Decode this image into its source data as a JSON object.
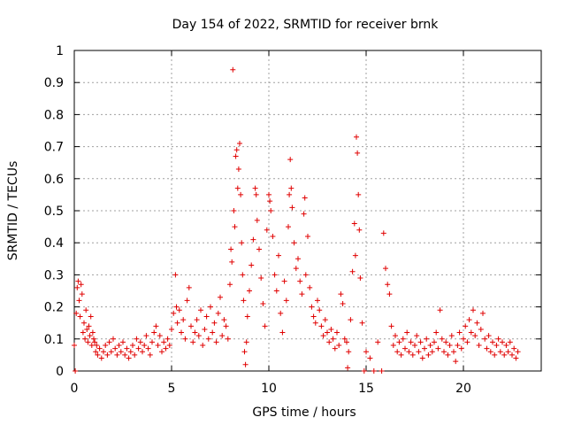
{
  "chart_data": {
    "type": "scatter",
    "title": "Day 154 of 2022, SRMTID for receiver brnk",
    "xlabel": "GPS time / hours",
    "ylabel": "SRMTID / TECUs",
    "xlim": [
      0,
      24
    ],
    "ylim": [
      0,
      1
    ],
    "grid": true,
    "marker": "+",
    "series_color": "#e00000",
    "x_ticks": [
      {
        "value": 0,
        "label": "0"
      },
      {
        "value": 5,
        "label": "5"
      },
      {
        "value": 10,
        "label": "10"
      },
      {
        "value": 15,
        "label": "15"
      },
      {
        "value": 20,
        "label": "20"
      }
    ],
    "y_ticks": [
      {
        "value": 0,
        "label": "0"
      },
      {
        "value": 0.1,
        "label": "0.1"
      },
      {
        "value": 0.2,
        "label": "0.2"
      },
      {
        "value": 0.3,
        "label": "0.3"
      },
      {
        "value": 0.4,
        "label": "0.4"
      },
      {
        "value": 0.5,
        "label": "0.5"
      },
      {
        "value": 0.6,
        "label": "0.6"
      },
      {
        "value": 0.7,
        "label": "0.7"
      },
      {
        "value": 0.8,
        "label": "0.8"
      },
      {
        "value": 0.9,
        "label": "0.9"
      },
      {
        "value": 1,
        "label": "1"
      }
    ],
    "series": [
      {
        "name": "SRMTID",
        "points": [
          [
            0.0,
            0.08
          ],
          [
            0.05,
            0.0
          ],
          [
            0.1,
            0.18
          ],
          [
            0.15,
            0.26
          ],
          [
            0.2,
            0.28
          ],
          [
            0.25,
            0.22
          ],
          [
            0.3,
            0.17
          ],
          [
            0.35,
            0.27
          ],
          [
            0.4,
            0.24
          ],
          [
            0.45,
            0.12
          ],
          [
            0.5,
            0.15
          ],
          [
            0.55,
            0.1
          ],
          [
            0.6,
            0.19
          ],
          [
            0.65,
            0.13
          ],
          [
            0.7,
            0.09
          ],
          [
            0.75,
            0.14
          ],
          [
            0.8,
            0.11
          ],
          [
            0.85,
            0.17
          ],
          [
            0.9,
            0.08
          ],
          [
            0.95,
            0.12
          ],
          [
            1.0,
            0.1
          ],
          [
            1.05,
            0.09
          ],
          [
            1.1,
            0.06
          ],
          [
            1.15,
            0.08
          ],
          [
            1.2,
            0.05
          ],
          [
            1.3,
            0.07
          ],
          [
            1.4,
            0.04
          ],
          [
            1.5,
            0.06
          ],
          [
            1.6,
            0.08
          ],
          [
            1.7,
            0.05
          ],
          [
            1.8,
            0.09
          ],
          [
            1.9,
            0.06
          ],
          [
            2.0,
            0.1
          ],
          [
            2.1,
            0.07
          ],
          [
            2.2,
            0.05
          ],
          [
            2.3,
            0.08
          ],
          [
            2.4,
            0.06
          ],
          [
            2.5,
            0.09
          ],
          [
            2.6,
            0.05
          ],
          [
            2.7,
            0.07
          ],
          [
            2.8,
            0.04
          ],
          [
            2.9,
            0.06
          ],
          [
            3.0,
            0.08
          ],
          [
            3.1,
            0.05
          ],
          [
            3.2,
            0.1
          ],
          [
            3.3,
            0.07
          ],
          [
            3.4,
            0.09
          ],
          [
            3.5,
            0.06
          ],
          [
            3.6,
            0.08
          ],
          [
            3.7,
            0.11
          ],
          [
            3.8,
            0.07
          ],
          [
            3.9,
            0.05
          ],
          [
            4.0,
            0.09
          ],
          [
            4.1,
            0.12
          ],
          [
            4.2,
            0.14
          ],
          [
            4.3,
            0.08
          ],
          [
            4.4,
            0.11
          ],
          [
            4.5,
            0.06
          ],
          [
            4.6,
            0.09
          ],
          [
            4.7,
            0.07
          ],
          [
            4.8,
            0.1
          ],
          [
            4.9,
            0.08
          ],
          [
            5.0,
            0.13
          ],
          [
            5.1,
            0.18
          ],
          [
            5.2,
            0.3
          ],
          [
            5.25,
            0.2
          ],
          [
            5.3,
            0.15
          ],
          [
            5.4,
            0.19
          ],
          [
            5.5,
            0.12
          ],
          [
            5.6,
            0.16
          ],
          [
            5.7,
            0.1
          ],
          [
            5.8,
            0.22
          ],
          [
            5.9,
            0.26
          ],
          [
            6.0,
            0.14
          ],
          [
            6.1,
            0.09
          ],
          [
            6.2,
            0.12
          ],
          [
            6.3,
            0.16
          ],
          [
            6.4,
            0.11
          ],
          [
            6.5,
            0.19
          ],
          [
            6.6,
            0.08
          ],
          [
            6.7,
            0.13
          ],
          [
            6.8,
            0.17
          ],
          [
            6.9,
            0.1
          ],
          [
            7.0,
            0.2
          ],
          [
            7.1,
            0.12
          ],
          [
            7.2,
            0.15
          ],
          [
            7.3,
            0.09
          ],
          [
            7.4,
            0.18
          ],
          [
            7.5,
            0.23
          ],
          [
            7.6,
            0.11
          ],
          [
            7.7,
            0.16
          ],
          [
            7.8,
            0.14
          ],
          [
            7.9,
            0.1
          ],
          [
            8.0,
            0.27
          ],
          [
            8.05,
            0.38
          ],
          [
            8.1,
            0.34
          ],
          [
            8.15,
            0.94
          ],
          [
            8.2,
            0.5
          ],
          [
            8.25,
            0.45
          ],
          [
            8.3,
            0.67
          ],
          [
            8.35,
            0.69
          ],
          [
            8.4,
            0.57
          ],
          [
            8.45,
            0.63
          ],
          [
            8.5,
            0.71
          ],
          [
            8.55,
            0.55
          ],
          [
            8.6,
            0.4
          ],
          [
            8.65,
            0.3
          ],
          [
            8.7,
            0.22
          ],
          [
            8.75,
            0.06
          ],
          [
            8.8,
            0.02
          ],
          [
            8.85,
            0.09
          ],
          [
            8.9,
            0.17
          ],
          [
            9.0,
            0.25
          ],
          [
            9.1,
            0.33
          ],
          [
            9.2,
            0.41
          ],
          [
            9.3,
            0.57
          ],
          [
            9.35,
            0.55
          ],
          [
            9.4,
            0.47
          ],
          [
            9.5,
            0.38
          ],
          [
            9.6,
            0.29
          ],
          [
            9.7,
            0.21
          ],
          [
            9.8,
            0.14
          ],
          [
            9.9,
            0.44
          ],
          [
            10.0,
            0.55
          ],
          [
            10.05,
            0.53
          ],
          [
            10.1,
            0.5
          ],
          [
            10.2,
            0.42
          ],
          [
            10.3,
            0.3
          ],
          [
            10.4,
            0.25
          ],
          [
            10.5,
            0.36
          ],
          [
            10.6,
            0.18
          ],
          [
            10.7,
            0.12
          ],
          [
            10.8,
            0.28
          ],
          [
            10.9,
            0.22
          ],
          [
            11.0,
            0.45
          ],
          [
            11.05,
            0.55
          ],
          [
            11.1,
            0.66
          ],
          [
            11.15,
            0.57
          ],
          [
            11.2,
            0.51
          ],
          [
            11.3,
            0.4
          ],
          [
            11.4,
            0.32
          ],
          [
            11.5,
            0.35
          ],
          [
            11.6,
            0.28
          ],
          [
            11.7,
            0.24
          ],
          [
            11.8,
            0.49
          ],
          [
            11.85,
            0.54
          ],
          [
            11.9,
            0.3
          ],
          [
            12.0,
            0.42
          ],
          [
            12.1,
            0.26
          ],
          [
            12.2,
            0.2
          ],
          [
            12.3,
            0.17
          ],
          [
            12.4,
            0.15
          ],
          [
            12.5,
            0.22
          ],
          [
            12.6,
            0.19
          ],
          [
            12.7,
            0.14
          ],
          [
            12.8,
            0.11
          ],
          [
            12.9,
            0.16
          ],
          [
            13.0,
            0.12
          ],
          [
            13.1,
            0.09
          ],
          [
            13.2,
            0.13
          ],
          [
            13.3,
            0.1
          ],
          [
            13.4,
            0.07
          ],
          [
            13.5,
            0.12
          ],
          [
            13.6,
            0.08
          ],
          [
            13.7,
            0.24
          ],
          [
            13.8,
            0.21
          ],
          [
            13.9,
            0.1
          ],
          [
            14.0,
            0.09
          ],
          [
            14.05,
            0.01
          ],
          [
            14.1,
            0.06
          ],
          [
            14.2,
            0.16
          ],
          [
            14.3,
            0.31
          ],
          [
            14.4,
            0.46
          ],
          [
            14.45,
            0.36
          ],
          [
            14.5,
            0.73
          ],
          [
            14.55,
            0.68
          ],
          [
            14.6,
            0.55
          ],
          [
            14.65,
            0.44
          ],
          [
            14.7,
            0.29
          ],
          [
            14.8,
            0.15
          ],
          [
            14.9,
            0.0
          ],
          [
            15.0,
            0.06
          ],
          [
            15.2,
            0.04
          ],
          [
            15.4,
            0.0
          ],
          [
            15.6,
            0.09
          ],
          [
            15.8,
            0.0
          ],
          [
            15.9,
            0.43
          ],
          [
            16.0,
            0.32
          ],
          [
            16.1,
            0.27
          ],
          [
            16.2,
            0.24
          ],
          [
            16.3,
            0.14
          ],
          [
            16.4,
            0.08
          ],
          [
            16.5,
            0.11
          ],
          [
            16.6,
            0.06
          ],
          [
            16.7,
            0.09
          ],
          [
            16.8,
            0.05
          ],
          [
            16.9,
            0.1
          ],
          [
            17.0,
            0.07
          ],
          [
            17.1,
            0.12
          ],
          [
            17.2,
            0.06
          ],
          [
            17.3,
            0.09
          ],
          [
            17.4,
            0.05
          ],
          [
            17.5,
            0.08
          ],
          [
            17.6,
            0.11
          ],
          [
            17.7,
            0.06
          ],
          [
            17.8,
            0.09
          ],
          [
            17.9,
            0.04
          ],
          [
            18.0,
            0.07
          ],
          [
            18.1,
            0.1
          ],
          [
            18.2,
            0.05
          ],
          [
            18.3,
            0.08
          ],
          [
            18.4,
            0.06
          ],
          [
            18.5,
            0.09
          ],
          [
            18.6,
            0.12
          ],
          [
            18.7,
            0.07
          ],
          [
            18.8,
            0.19
          ],
          [
            18.9,
            0.1
          ],
          [
            19.0,
            0.06
          ],
          [
            19.1,
            0.09
          ],
          [
            19.2,
            0.05
          ],
          [
            19.3,
            0.08
          ],
          [
            19.4,
            0.11
          ],
          [
            19.5,
            0.06
          ],
          [
            19.6,
            0.03
          ],
          [
            19.7,
            0.08
          ],
          [
            19.8,
            0.12
          ],
          [
            19.9,
            0.07
          ],
          [
            20.0,
            0.1
          ],
          [
            20.1,
            0.14
          ],
          [
            20.2,
            0.09
          ],
          [
            20.3,
            0.16
          ],
          [
            20.4,
            0.12
          ],
          [
            20.5,
            0.19
          ],
          [
            20.6,
            0.11
          ],
          [
            20.7,
            0.15
          ],
          [
            20.8,
            0.08
          ],
          [
            20.9,
            0.13
          ],
          [
            21.0,
            0.18
          ],
          [
            21.1,
            0.1
          ],
          [
            21.2,
            0.07
          ],
          [
            21.3,
            0.11
          ],
          [
            21.4,
            0.06
          ],
          [
            21.5,
            0.09
          ],
          [
            21.6,
            0.05
          ],
          [
            21.7,
            0.08
          ],
          [
            21.8,
            0.1
          ],
          [
            21.9,
            0.06
          ],
          [
            22.0,
            0.09
          ],
          [
            22.1,
            0.05
          ],
          [
            22.2,
            0.08
          ],
          [
            22.3,
            0.06
          ],
          [
            22.4,
            0.09
          ],
          [
            22.5,
            0.05
          ],
          [
            22.6,
            0.07
          ],
          [
            22.7,
            0.04
          ],
          [
            22.8,
            0.06
          ]
        ]
      }
    ]
  }
}
